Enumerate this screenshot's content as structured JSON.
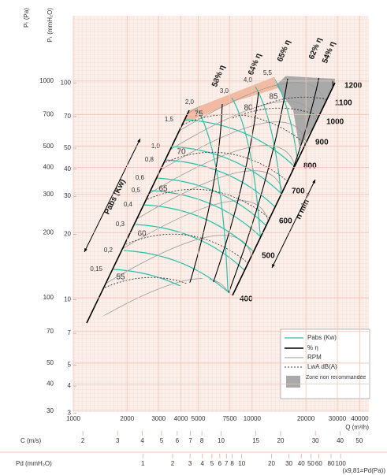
{
  "chart_data": {
    "type": "fan",
    "y_label": "Pₜ (Pa)",
    "y2_label": "Pₜ (mmH₂O)",
    "x_label": "Q (m³/h)",
    "log_scale": true,
    "grid": true,
    "xlim": [
      1000,
      45000
    ],
    "xticks": [
      1000,
      2000,
      3000,
      4000,
      5000,
      7500,
      10000,
      20000,
      30000,
      40000
    ],
    "ylim": [
      30,
      2000
    ],
    "yticks": [
      30,
      40,
      50,
      70,
      100,
      200,
      300,
      400,
      500,
      700,
      1000
    ],
    "y2lim": [
      3.06,
      203.9
    ],
    "y2ticks": [
      3,
      4,
      5,
      7,
      10,
      20,
      30,
      40,
      50,
      70,
      100
    ],
    "rpm": {
      "name": "RPM",
      "color": "#9a9a9a",
      "values": [
        400,
        500,
        600,
        700,
        800,
        900,
        1000,
        1100,
        1200
      ]
    },
    "efficiency": {
      "name": "% η",
      "color": "#000000",
      "values": [
        58,
        64,
        65,
        62,
        54
      ],
      "value_labels": [
        "58% η",
        "64% η",
        "65% η",
        "62% η",
        "54% η"
      ]
    },
    "power": {
      "name": "Pabs (Kw)",
      "color": "#2bbfa8",
      "values": [
        0.15,
        0.2,
        0.3,
        0.4,
        0.5,
        0.6,
        0.8,
        1.0,
        1.5,
        2.0,
        3.0,
        4.0,
        5.5
      ],
      "value_labels": [
        "0,15",
        "0,2",
        "0,3",
        "0,4",
        "0,5",
        "0,6",
        "0,8",
        "1,0",
        "1,5",
        "2,0",
        "3,0",
        "4,0",
        "5,5"
      ]
    },
    "lwa": {
      "name": "LwA dB(A)",
      "values": [
        55,
        60,
        65,
        70,
        75,
        80,
        85
      ]
    },
    "zone": {
      "name": "Zone non recommandée",
      "color": "#a9a9a9"
    },
    "speed_note": "n  min⁻¹",
    "velocity_scale": {
      "label": "C (m/s)",
      "xlim": [
        1.79,
        55.9
      ],
      "ticks": [
        2,
        3,
        4,
        5,
        6,
        7,
        8,
        10,
        15,
        20,
        30,
        40,
        50
      ]
    },
    "dynamic_pressure_scale": {
      "label": "Pd (mmH₂O)",
      "xlim": [
        0.198,
        193
      ],
      "ticks": [
        1,
        2,
        3,
        4,
        5,
        6,
        7,
        8,
        10,
        20,
        30,
        40,
        50,
        60,
        80,
        100
      ],
      "note": "(x9,81=Pd(Pa))"
    }
  }
}
